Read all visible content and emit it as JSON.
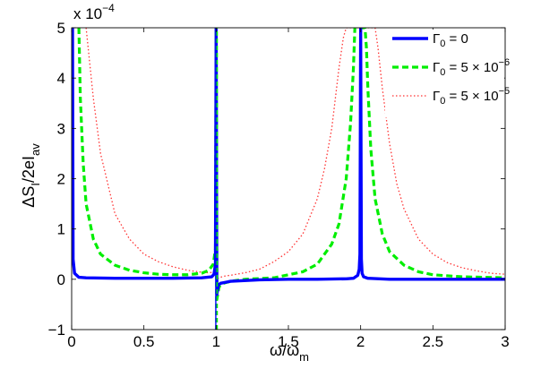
{
  "chart_data": {
    "type": "line",
    "xlabel": {
      "main": "ω/ω",
      "sub": "m"
    },
    "ylabel": {
      "main": "ΔS",
      "sub1": "I",
      "mid": "/2eI",
      "sub2": "av"
    },
    "y_multiplier": {
      "base": "x 10",
      "exp": "−4"
    },
    "xlim": [
      0,
      3
    ],
    "ylim": [
      -1,
      5
    ],
    "xticks": [
      0,
      0.5,
      1,
      1.5,
      2,
      2.5,
      3
    ],
    "xtick_labels": [
      "0",
      "0.5",
      "1",
      "1.5",
      "2",
      "2.5",
      "3"
    ],
    "yticks": [
      -1,
      0,
      1,
      2,
      3,
      4,
      5
    ],
    "ytick_labels": [
      "−1",
      "0",
      "1",
      "2",
      "3",
      "4",
      "5"
    ],
    "grid": false,
    "legend_position": "top-right",
    "series": [
      {
        "name": "Γ_0 = 0",
        "legend": {
          "g": "Γ",
          "sub": "0",
          "rest": " = 0"
        },
        "color": "#0000ff",
        "style": "solid",
        "x": [
          0.006,
          0.01,
          0.02,
          0.05,
          0.1,
          0.3,
          0.5,
          0.7,
          0.9,
          0.97,
          0.985,
          0.995,
          1.0,
          1.005,
          1.015,
          1.03,
          1.1,
          1.3,
          1.5,
          1.7,
          1.9,
          1.95,
          1.98,
          1.99,
          1.995,
          2.0,
          2.005,
          2.01,
          2.02,
          2.05,
          2.2,
          2.5,
          2.8,
          3.0
        ],
        "y": [
          5.0,
          0.4,
          0.12,
          0.04,
          0.03,
          0.02,
          0.02,
          0.02,
          0.03,
          0.05,
          0.1,
          0.3,
          5.0,
          -0.3,
          -0.12,
          -0.08,
          -0.04,
          -0.01,
          0.0,
          0.0,
          0.01,
          0.02,
          0.08,
          0.2,
          0.5,
          5.0,
          0.4,
          0.12,
          0.05,
          0.02,
          0.0,
          0.0,
          0.0,
          0.0
        ]
      },
      {
        "name": "Γ_0 = 5 × 10^-6",
        "legend": {
          "g": "Γ",
          "sub": "0",
          "rest": " = 5 × 10",
          "exp": "−6"
        },
        "color": "#00ee00",
        "style": "dashed",
        "x": [
          0.05,
          0.06,
          0.08,
          0.1,
          0.15,
          0.2,
          0.3,
          0.4,
          0.5,
          0.6,
          0.7,
          0.8,
          0.9,
          0.95,
          0.98,
          0.995,
          1.0,
          1.005,
          1.02,
          1.05,
          1.1,
          1.2,
          1.4,
          1.6,
          1.7,
          1.8,
          1.85,
          1.9,
          1.93,
          1.95,
          1.96,
          1.97,
          2.03,
          2.04,
          2.05,
          2.07,
          2.1,
          2.15,
          2.2,
          2.3,
          2.4,
          2.5,
          2.7,
          3.0
        ],
        "y": [
          5.0,
          3.6,
          2.3,
          1.5,
          0.8,
          0.5,
          0.28,
          0.18,
          0.13,
          0.1,
          0.09,
          0.09,
          0.12,
          0.18,
          0.3,
          0.6,
          5.0,
          -0.4,
          -0.15,
          -0.08,
          -0.04,
          0.0,
          0.03,
          0.15,
          0.3,
          0.7,
          1.1,
          2.0,
          3.1,
          4.2,
          5.0,
          5.0,
          5.0,
          4.6,
          3.8,
          2.6,
          1.6,
          0.9,
          0.55,
          0.28,
          0.15,
          0.09,
          0.05,
          0.03
        ]
      },
      {
        "name": "Γ_0 = 5 × 10^-5",
        "legend": {
          "g": "Γ",
          "sub": "0",
          "rest": " = 5 × 10",
          "exp": "−5"
        },
        "color": "#ff3333",
        "style": "dotted",
        "x": [
          0.1,
          0.15,
          0.2,
          0.3,
          0.4,
          0.5,
          0.6,
          0.7,
          0.8,
          0.9,
          0.95,
          0.98,
          0.995,
          1.005,
          1.02,
          1.05,
          1.1,
          1.2,
          1.3,
          1.4,
          1.5,
          1.6,
          1.7,
          1.75,
          1.8,
          1.85,
          1.88,
          1.9,
          2.1,
          2.12,
          2.15,
          2.2,
          2.25,
          2.3,
          2.4,
          2.5,
          2.6,
          2.7,
          2.8,
          2.9,
          3.0
        ],
        "y": [
          5.0,
          3.6,
          2.5,
          1.3,
          0.8,
          0.5,
          0.35,
          0.25,
          0.18,
          0.14,
          0.13,
          0.14,
          0.2,
          0.0,
          0.03,
          0.06,
          0.08,
          0.13,
          0.2,
          0.35,
          0.55,
          0.9,
          1.6,
          2.2,
          3.0,
          4.2,
          4.8,
          5.0,
          5.0,
          4.6,
          3.8,
          2.7,
          1.9,
          1.4,
          0.8,
          0.5,
          0.33,
          0.23,
          0.17,
          0.12,
          0.1
        ]
      }
    ],
    "spikes": [
      {
        "x": 1.0,
        "y_from": -1,
        "y_to": 5,
        "colors": [
          "#00ee00",
          "#0000ff"
        ]
      }
    ]
  }
}
